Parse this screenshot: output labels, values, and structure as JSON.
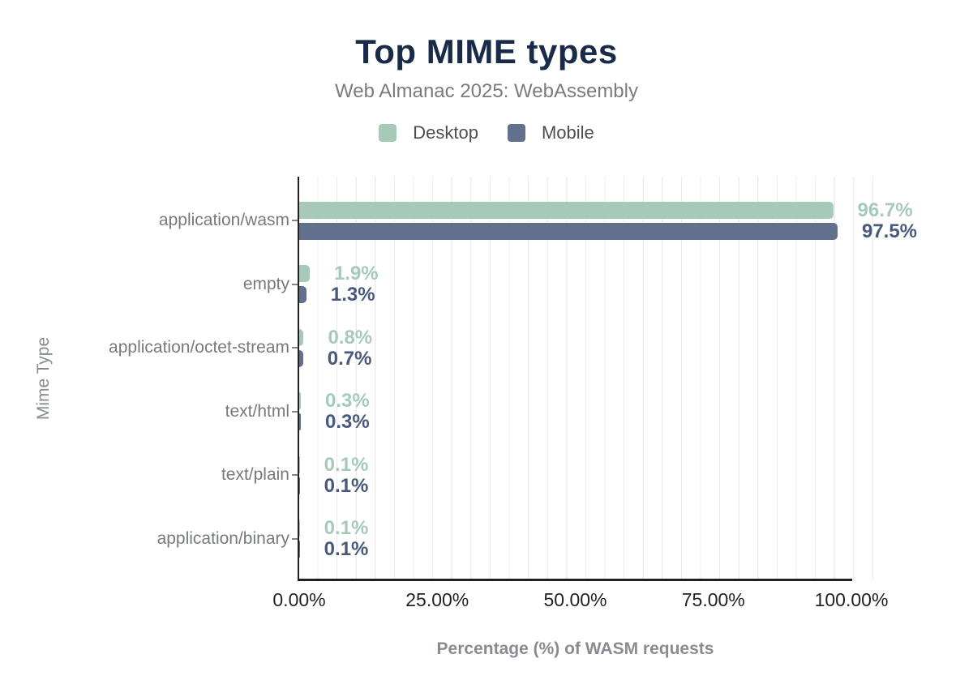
{
  "chart_data": {
    "type": "bar",
    "orientation": "horizontal",
    "title": "Top MIME types",
    "subtitle": "Web Almanac 2025: WebAssembly",
    "xlabel": "Percentage (%) of WASM requests",
    "ylabel": "Mime Type",
    "categories": [
      "application/wasm",
      "empty",
      "application/octet-stream",
      "text/html",
      "text/plain",
      "application/binary"
    ],
    "series": [
      {
        "name": "Desktop",
        "color": "#a7cab8",
        "label_color": "#a7cab8",
        "values": [
          96.7,
          1.9,
          0.8,
          0.3,
          0.1,
          0.1
        ],
        "value_labels": [
          "96.7%",
          "1.9%",
          "0.8%",
          "0.3%",
          "0.1%",
          "0.1%"
        ]
      },
      {
        "name": "Mobile",
        "color": "#60708d",
        "label_color": "#48597c",
        "values": [
          97.5,
          1.3,
          0.7,
          0.3,
          0.1,
          0.1
        ],
        "value_labels": [
          "97.5%",
          "1.3%",
          "0.7%",
          "0.3%",
          "0.1%",
          "0.1%"
        ]
      }
    ],
    "xlim": [
      0,
      100
    ],
    "x_ticks": [
      "0.00%",
      "25.00%",
      "50.00%",
      "75.00%",
      "100.00%"
    ],
    "grid": "vertical",
    "legend_position": "top"
  },
  "colors": {
    "title": "#1a2b49",
    "subtitle": "#7b7b7b",
    "axis_line": "#212121",
    "gridline": "#ececec",
    "category_label": "#76797f",
    "tick_label": "#1f2124",
    "axis_title": "#888c92",
    "legend_label": "#4a4d52"
  }
}
